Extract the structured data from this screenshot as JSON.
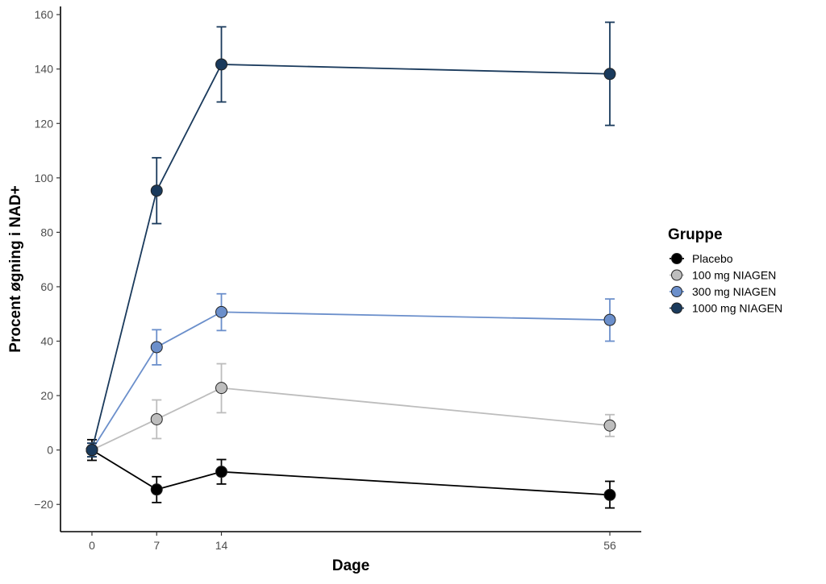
{
  "chart_data": {
    "type": "line",
    "xlabel": "Dage",
    "ylabel": "Procent øgning i NAD+",
    "x": [
      0,
      7,
      14,
      56
    ],
    "x_ticks": [
      "0",
      "7",
      "14",
      "56"
    ],
    "xlim": [
      -3.4,
      59.4
    ],
    "ylim": [
      -30,
      163
    ],
    "y_ticks": [
      "−20",
      "0",
      "20",
      "40",
      "60",
      "80",
      "100",
      "120",
      "140",
      "160"
    ],
    "grid": false,
    "error_bars": true,
    "legend": {
      "title": "Gruppe",
      "placement": "right"
    },
    "series": [
      {
        "name": "Placebo",
        "color": "#000000",
        "values": [
          0,
          -14.5,
          -8,
          -16.5
        ],
        "err_low": [
          -3.8,
          -19.3,
          -12.5,
          -21.3
        ],
        "err_high": [
          3.8,
          -9.8,
          -3.5,
          -11.5
        ]
      },
      {
        "name": "100 mg NIAGEN",
        "color": "#bdbdbd",
        "values": [
          0,
          11.3,
          22.8,
          9
        ],
        "err_low": [
          -2.5,
          4.2,
          13.7,
          5
        ],
        "err_high": [
          2.5,
          18.4,
          31.7,
          13
        ]
      },
      {
        "name": "300 mg NIAGEN",
        "color": "#6b8fcb",
        "values": [
          0,
          37.8,
          50.7,
          47.8
        ],
        "err_low": [
          -2.5,
          31.3,
          43.9,
          40
        ],
        "err_high": [
          2.5,
          44.2,
          57.4,
          55.5
        ]
      },
      {
        "name": "1000 mg NIAGEN",
        "color": "#1a3a5c",
        "values": [
          0,
          95.3,
          141.7,
          138.2
        ],
        "err_low": [
          -2.5,
          83.2,
          127.9,
          119.3
        ],
        "err_high": [
          2.5,
          107.4,
          155.5,
          157.2
        ]
      }
    ]
  }
}
